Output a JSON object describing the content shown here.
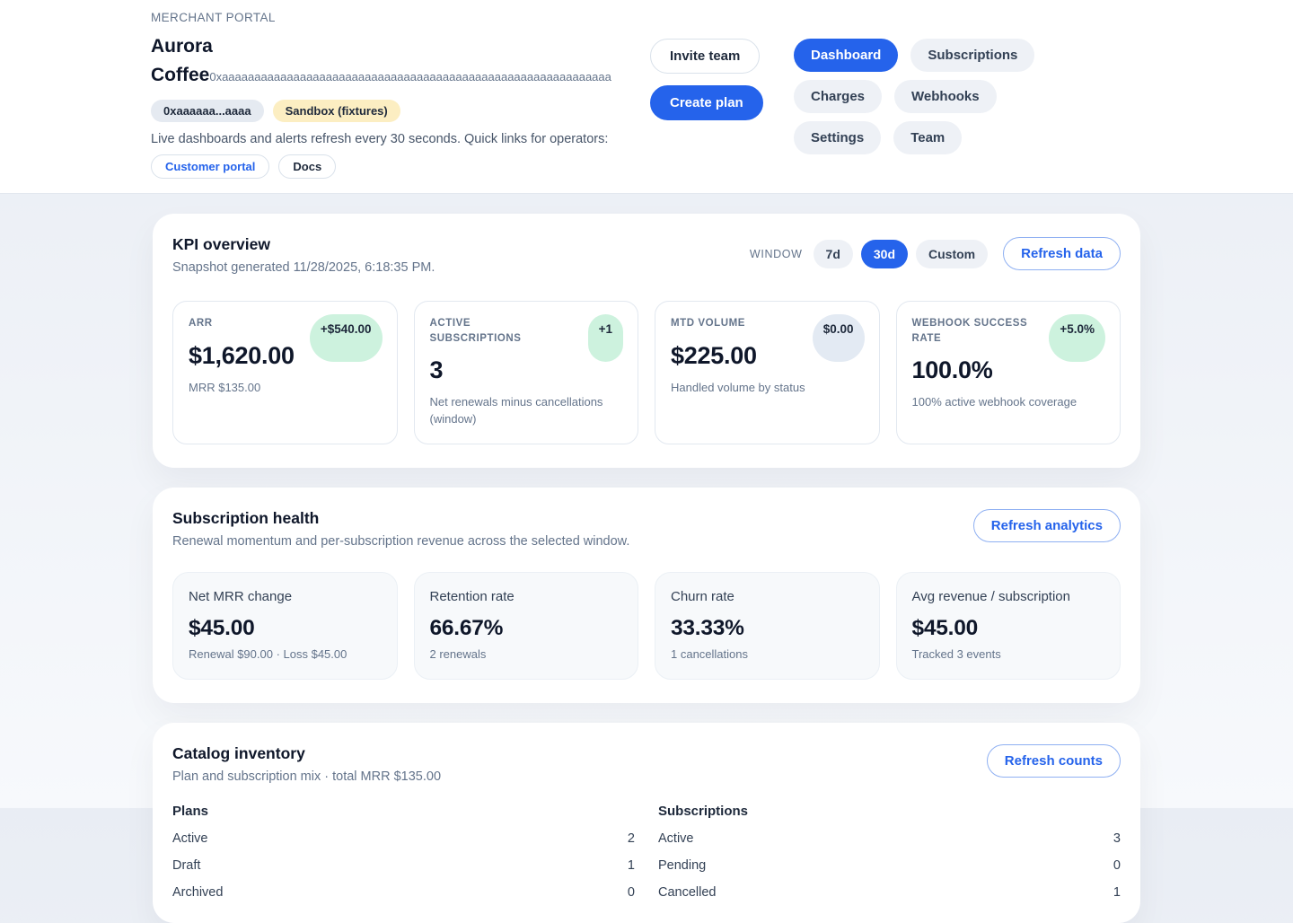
{
  "brand": {
    "eyebrow": "MERCHANT PORTAL",
    "title": "Aurora Coffee",
    "title_suffix": "0xaaaaaaaaaaaaaaaaaaaaaaaaaaaaaaaaaaaaaaaaaaaaaaaaaaaaaaaaaaaa",
    "account_badge": "0xaaaaaa...aaaa",
    "env_badge": "Sandbox (fixtures)",
    "description": "Live dashboards and alerts refresh every 30 seconds. Quick links for operators:",
    "links": [
      {
        "label": "Customer portal"
      },
      {
        "label": "Docs"
      }
    ]
  },
  "actions": {
    "invite": "Invite team",
    "create": "Create plan"
  },
  "nav": {
    "items": [
      {
        "label": "Dashboard",
        "active": true
      },
      {
        "label": "Subscriptions",
        "active": false
      },
      {
        "label": "Charges",
        "active": false
      },
      {
        "label": "Webhooks",
        "active": false
      },
      {
        "label": "Settings",
        "active": false
      },
      {
        "label": "Team",
        "active": false
      }
    ]
  },
  "kpi": {
    "title": "KPI overview",
    "subtitle": "Snapshot generated 11/28/2025, 6:18:35 PM.",
    "window_label": "WINDOW",
    "windows": [
      {
        "label": "7d",
        "active": false
      },
      {
        "label": "30d",
        "active": true
      },
      {
        "label": "Custom",
        "active": false
      }
    ],
    "refresh_label": "Refresh data",
    "cards": [
      {
        "label": "ARR",
        "badge": "+$540.00",
        "tone": "positive",
        "value": "$1,620.00",
        "sub": "MRR $135.00"
      },
      {
        "label": "ACTIVE SUBSCRIPTIONS",
        "badge": "+1",
        "tone": "positive",
        "value": "3",
        "sub": "Net renewals minus cancellations (window)"
      },
      {
        "label": "MTD VOLUME",
        "badge": "$0.00",
        "tone": "neutral",
        "value": "$225.00",
        "sub": "Handled volume by status"
      },
      {
        "label": "WEBHOOK SUCCESS RATE",
        "badge": "+5.0%",
        "tone": "positive",
        "value": "100.0%",
        "sub": "100% active webhook coverage"
      }
    ]
  },
  "health": {
    "title": "Subscription health",
    "subtitle": "Renewal momentum and per-subscription revenue across the selected window.",
    "refresh_label": "Refresh analytics",
    "cards": [
      {
        "label": "Net MRR change",
        "value": "$45.00",
        "sub": "Renewal $90.00 · Loss $45.00"
      },
      {
        "label": "Retention rate",
        "value": "66.67%",
        "sub": "2 renewals"
      },
      {
        "label": "Churn rate",
        "value": "33.33%",
        "sub": "1 cancellations"
      },
      {
        "label": "Avg revenue / subscription",
        "value": "$45.00",
        "sub": "Tracked 3 events"
      }
    ]
  },
  "catalog": {
    "title": "Catalog inventory",
    "subtitle": "Plan and subscription mix · total MRR $135.00",
    "refresh_label": "Refresh counts",
    "columns": [
      {
        "header": "Plans",
        "rows": [
          {
            "label": "Active",
            "value": "2"
          },
          {
            "label": "Draft",
            "value": "1"
          },
          {
            "label": "Archived",
            "value": "0"
          }
        ]
      },
      {
        "header": "Subscriptions",
        "rows": [
          {
            "label": "Active",
            "value": "3"
          },
          {
            "label": "Pending",
            "value": "0"
          },
          {
            "label": "Cancelled",
            "value": "1"
          }
        ]
      }
    ]
  },
  "colors": {
    "accent": "#2563eb",
    "positive_badge_bg": "#cdf2de",
    "neutral_badge_bg": "#e3eaf3",
    "sandbox_badge_bg": "#fceec2"
  }
}
